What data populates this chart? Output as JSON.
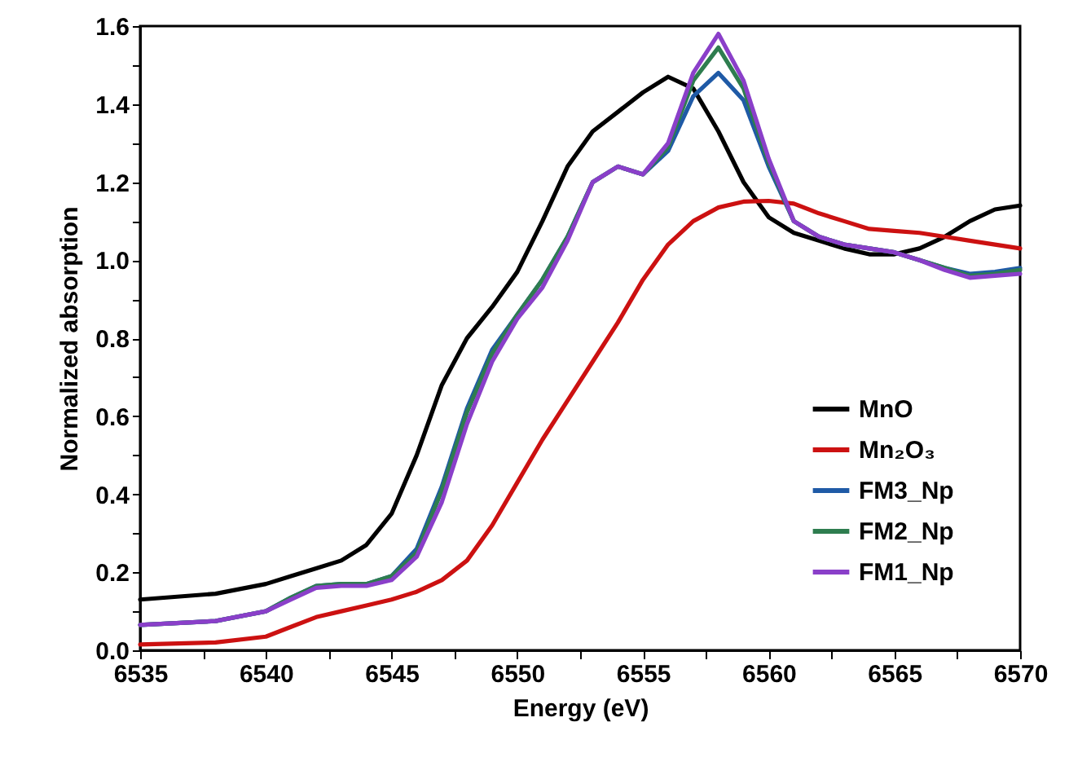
{
  "chart_data": {
    "type": "line",
    "xlabel": "Energy (eV)",
    "ylabel": "Normalized absorption",
    "xlim": [
      6535,
      6570
    ],
    "ylim": [
      0,
      1.6
    ],
    "xticks": [
      6535,
      {
        "value": 6537.5,
        "label": null
      },
      6540,
      {
        "value": 6542.5,
        "label": null
      },
      6545,
      {
        "value": 6547.5,
        "label": null
      },
      6550,
      {
        "value": 6552.5,
        "label": null
      },
      6555,
      {
        "value": 6557.5,
        "label": null
      },
      6560,
      {
        "value": 6562.5,
        "label": null
      },
      6565,
      {
        "value": 6567.5,
        "label": null
      },
      6570
    ],
    "yticks": [
      {
        "value": 0,
        "label": "0.0"
      },
      {
        "value": 0.1,
        "label": null
      },
      {
        "value": 0.2,
        "label": "0.2"
      },
      {
        "value": 0.3,
        "label": null
      },
      {
        "value": 0.4,
        "label": "0.4"
      },
      {
        "value": 0.5,
        "label": null
      },
      {
        "value": 0.6,
        "label": "0.6"
      },
      {
        "value": 0.7,
        "label": null
      },
      {
        "value": 0.8,
        "label": "0.8"
      },
      {
        "value": 0.9,
        "label": null
      },
      {
        "value": 1,
        "label": "1.0"
      },
      {
        "value": 1.1,
        "label": null
      },
      {
        "value": 1.2,
        "label": "1.2"
      },
      {
        "value": 1.3,
        "label": null
      },
      {
        "value": 1.4,
        "label": "1.4"
      },
      {
        "value": 1.5,
        "label": null
      },
      {
        "value": 1.6,
        "label": "1.6"
      }
    ],
    "grid": false,
    "legend": "bottom right",
    "marker": "none",
    "line_style": "solid",
    "x": [
      6535,
      6538,
      6540,
      6541,
      6542,
      6543,
      6544,
      6545,
      6546,
      6547,
      6548,
      6549,
      6550,
      6551,
      6552,
      6553,
      6554,
      6555,
      6556,
      6557,
      6558,
      6559,
      6560,
      6561,
      6562,
      6563,
      6564,
      6565,
      6566,
      6567,
      6568,
      6569,
      6570
    ],
    "series": [
      {
        "name": "MnO",
        "color": "#000000",
        "values": [
          0.13,
          0.145,
          0.17,
          0.19,
          0.21,
          0.23,
          0.27,
          0.35,
          0.5,
          0.68,
          0.8,
          0.88,
          0.97,
          1.1,
          1.24,
          1.33,
          1.38,
          1.43,
          1.47,
          1.44,
          1.33,
          1.2,
          1.11,
          1.07,
          1.05,
          1.03,
          1.015,
          1.015,
          1.03,
          1.06,
          1.1,
          1.13,
          1.14
        ]
      },
      {
        "name": "Mn₂O₃",
        "color": "#cc1111",
        "values": [
          0.015,
          0.02,
          0.035,
          0.06,
          0.085,
          0.1,
          0.115,
          0.13,
          0.15,
          0.18,
          0.23,
          0.32,
          0.43,
          0.54,
          0.64,
          0.74,
          0.84,
          0.95,
          1.04,
          1.1,
          1.135,
          1.15,
          1.152,
          1.145,
          1.12,
          1.1,
          1.08,
          1.075,
          1.07,
          1.06,
          1.05,
          1.04,
          1.03
        ]
      },
      {
        "name": "FM3_Np",
        "color": "#1f5aa6",
        "values": [
          0.065,
          0.075,
          0.1,
          0.135,
          0.165,
          0.17,
          0.17,
          0.19,
          0.26,
          0.42,
          0.62,
          0.77,
          0.86,
          0.95,
          1.06,
          1.2,
          1.24,
          1.22,
          1.28,
          1.42,
          1.48,
          1.41,
          1.24,
          1.1,
          1.06,
          1.04,
          1.03,
          1.02,
          1.0,
          0.98,
          0.965,
          0.97,
          0.98
        ]
      },
      {
        "name": "FM2_Np",
        "color": "#2e7d4f",
        "values": [
          0.065,
          0.075,
          0.1,
          0.135,
          0.165,
          0.17,
          0.17,
          0.19,
          0.25,
          0.41,
          0.61,
          0.76,
          0.86,
          0.95,
          1.06,
          1.2,
          1.24,
          1.22,
          1.29,
          1.46,
          1.545,
          1.44,
          1.25,
          1.1,
          1.06,
          1.04,
          1.03,
          1.02,
          1.0,
          0.98,
          0.96,
          0.965,
          0.975
        ]
      },
      {
        "name": "FM1_Np",
        "color": "#8a3fc9",
        "values": [
          0.065,
          0.075,
          0.1,
          0.13,
          0.16,
          0.165,
          0.165,
          0.18,
          0.24,
          0.38,
          0.58,
          0.74,
          0.85,
          0.93,
          1.05,
          1.2,
          1.24,
          1.22,
          1.3,
          1.48,
          1.58,
          1.46,
          1.26,
          1.1,
          1.06,
          1.04,
          1.03,
          1.02,
          1.0,
          0.975,
          0.955,
          0.96,
          0.965
        ]
      }
    ]
  }
}
